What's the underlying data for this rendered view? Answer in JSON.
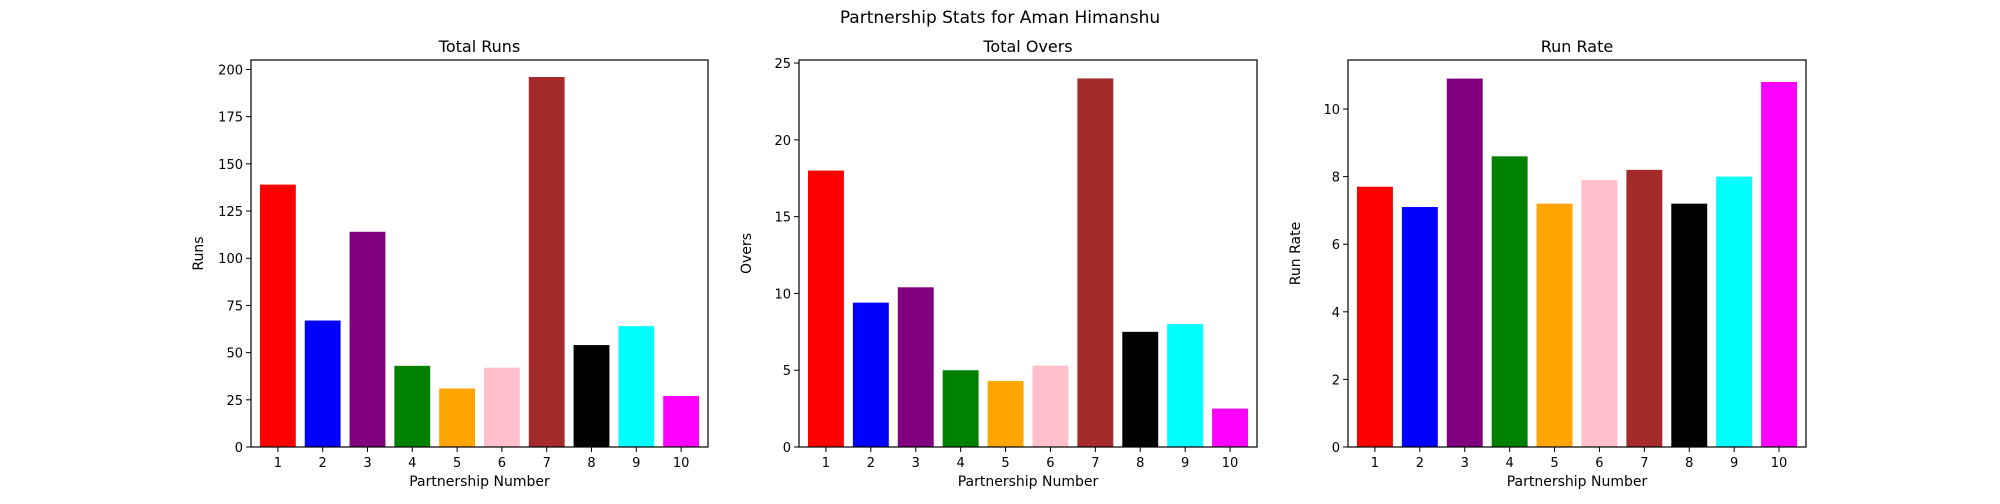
{
  "figure": {
    "suptitle": "Partnership Stats for Aman Himanshu"
  },
  "chart_data": [
    {
      "type": "bar",
      "title": "Total Runs",
      "xlabel": "Partnership Number",
      "ylabel": "Runs",
      "categories": [
        "1",
        "2",
        "3",
        "4",
        "5",
        "6",
        "7",
        "8",
        "9",
        "10"
      ],
      "values": [
        139,
        67,
        114,
        43,
        31,
        42,
        196,
        54,
        64,
        27
      ],
      "ylim": [
        0,
        205
      ],
      "yticks": [
        0,
        25,
        50,
        75,
        100,
        125,
        150,
        175,
        200
      ],
      "colors": [
        "#ff0000",
        "#0000ff",
        "#800080",
        "#008000",
        "#ffa500",
        "#ffc0cb",
        "#a52a2a",
        "#000000",
        "#00ffff",
        "#ff00ff"
      ],
      "grid": false
    },
    {
      "type": "bar",
      "title": "Total Overs",
      "xlabel": "Partnership Number",
      "ylabel": "Overs",
      "categories": [
        "1",
        "2",
        "3",
        "4",
        "5",
        "6",
        "7",
        "8",
        "9",
        "10"
      ],
      "values": [
        18,
        9.4,
        10.4,
        5,
        4.3,
        5.3,
        24,
        7.5,
        8,
        2.5
      ],
      "ylim": [
        0,
        25.2
      ],
      "yticks": [
        0,
        5,
        10,
        15,
        20,
        25
      ],
      "colors": [
        "#ff0000",
        "#0000ff",
        "#800080",
        "#008000",
        "#ffa500",
        "#ffc0cb",
        "#a52a2a",
        "#000000",
        "#00ffff",
        "#ff00ff"
      ],
      "grid": false
    },
    {
      "type": "bar",
      "title": "Run Rate",
      "xlabel": "Partnership Number",
      "ylabel": "Run Rate",
      "categories": [
        "1",
        "2",
        "3",
        "4",
        "5",
        "6",
        "7",
        "8",
        "9",
        "10"
      ],
      "values": [
        7.7,
        7.1,
        10.9,
        8.6,
        7.2,
        7.9,
        8.2,
        7.2,
        8.0,
        10.8
      ],
      "ylim": [
        0,
        11.45
      ],
      "yticks": [
        0,
        2,
        4,
        6,
        8,
        10
      ],
      "colors": [
        "#ff0000",
        "#0000ff",
        "#800080",
        "#008000",
        "#ffa500",
        "#ffc0cb",
        "#a52a2a",
        "#000000",
        "#00ffff",
        "#ff00ff"
      ],
      "grid": false
    }
  ]
}
